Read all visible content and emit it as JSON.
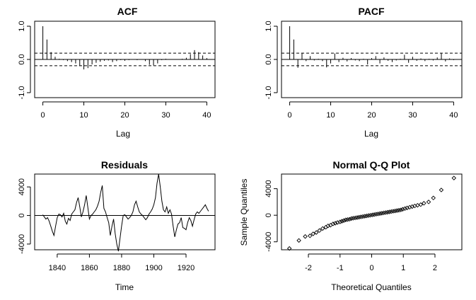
{
  "chart_data": [
    {
      "type": "bar",
      "title": "ACF",
      "xlabel": "Lag",
      "ylabel": "",
      "xlim": [
        -2,
        42
      ],
      "ylim": [
        -1.15,
        1.15
      ],
      "xticks": [
        0,
        10,
        20,
        30,
        40
      ],
      "xtick_labels": [
        "0",
        "10",
        "20",
        "30",
        "40"
      ],
      "yticks": [
        -1.0,
        0.0,
        1.0
      ],
      "ytick_labels": [
        "-1.0",
        "0.0",
        "1.0"
      ],
      "conf_limit": 0.19,
      "lags": [
        0,
        1,
        2,
        3,
        4,
        5,
        6,
        7,
        8,
        9,
        10,
        11,
        12,
        13,
        14,
        15,
        16,
        17,
        18,
        19,
        20,
        21,
        22,
        23,
        24,
        25,
        26,
        27,
        28,
        29,
        30,
        31,
        32,
        33,
        34,
        35,
        36,
        37,
        38,
        39,
        40
      ],
      "values": [
        1.0,
        0.6,
        0.22,
        0.08,
        0.02,
        -0.02,
        -0.05,
        -0.08,
        -0.12,
        -0.2,
        -0.3,
        -0.26,
        -0.15,
        -0.1,
        -0.07,
        -0.04,
        -0.03,
        -0.08,
        -0.05,
        -0.02,
        -0.04,
        -0.02,
        -0.01,
        -0.02,
        -0.01,
        -0.05,
        -0.16,
        -0.18,
        -0.12,
        -0.02,
        0.02,
        0.01,
        0.0,
        0.01,
        0.02,
        0.05,
        0.16,
        0.28,
        0.22,
        0.12,
        0.04
      ]
    },
    {
      "type": "bar",
      "title": "PACF",
      "xlabel": "Lag",
      "ylabel": "",
      "xlim": [
        -2,
        42
      ],
      "ylim": [
        -1.15,
        1.15
      ],
      "xticks": [
        0,
        10,
        20,
        30,
        40
      ],
      "xtick_labels": [
        "0",
        "10",
        "20",
        "30",
        "40"
      ],
      "yticks": [
        -1.0,
        0.0,
        1.0
      ],
      "ytick_labels": [
        "-1.0",
        "0.0",
        "1.0"
      ],
      "conf_limit": 0.19,
      "lags": [
        0,
        1,
        2,
        3,
        4,
        5,
        6,
        7,
        8,
        9,
        10,
        11,
        12,
        13,
        14,
        15,
        16,
        17,
        18,
        19,
        20,
        21,
        22,
        23,
        24,
        25,
        26,
        27,
        28,
        29,
        30,
        31,
        32,
        33,
        34,
        35,
        36,
        37,
        38,
        39,
        40
      ],
      "values": [
        1.0,
        0.6,
        -0.25,
        0.2,
        -0.05,
        0.1,
        -0.03,
        0.02,
        -0.05,
        -0.24,
        -0.12,
        0.18,
        -0.08,
        0.05,
        -0.06,
        0.04,
        -0.03,
        -0.05,
        0.02,
        -0.15,
        0.04,
        0.1,
        -0.12,
        0.06,
        -0.04,
        -0.08,
        -0.03,
        0.02,
        0.14,
        -0.1,
        0.08,
        -0.04,
        0.03,
        -0.05,
        0.02,
        -0.03,
        0.06,
        0.18,
        -0.06,
        0.03,
        -0.02
      ]
    },
    {
      "type": "line",
      "title": "Residuals",
      "xlabel": "Time",
      "ylabel": "",
      "xlim": [
        1826,
        1938
      ],
      "ylim": [
        -4800,
        5800
      ],
      "xticks": [
        1840,
        1860,
        1880,
        1900,
        1920
      ],
      "xtick_labels": [
        "1840",
        "1860",
        "1880",
        "1900",
        "1920"
      ],
      "yticks": [
        -4000,
        0,
        4000
      ],
      "ytick_labels": [
        "-4000",
        "0",
        "4000"
      ],
      "hline": 0,
      "x": [
        1831,
        1832,
        1833,
        1834,
        1835,
        1836,
        1837,
        1838,
        1839,
        1840,
        1841,
        1842,
        1843,
        1844,
        1845,
        1846,
        1847,
        1848,
        1849,
        1850,
        1851,
        1852,
        1853,
        1854,
        1855,
        1856,
        1857,
        1858,
        1859,
        1860,
        1861,
        1862,
        1863,
        1864,
        1865,
        1866,
        1867,
        1868,
        1869,
        1870,
        1871,
        1872,
        1873,
        1874,
        1875,
        1876,
        1877,
        1878,
        1879,
        1880,
        1881,
        1882,
        1883,
        1884,
        1885,
        1886,
        1887,
        1888,
        1889,
        1890,
        1891,
        1892,
        1893,
        1894,
        1895,
        1896,
        1897,
        1898,
        1899,
        1900,
        1901,
        1902,
        1903,
        1904,
        1905,
        1906,
        1907,
        1908,
        1909,
        1910,
        1911,
        1912,
        1913,
        1914,
        1915,
        1916,
        1917,
        1918,
        1919,
        1920,
        1921,
        1922,
        1923,
        1924,
        1925,
        1926,
        1927,
        1928,
        1929,
        1930,
        1931,
        1932,
        1933,
        1934
      ],
      "y": [
        100,
        -200,
        -500,
        -300,
        -800,
        -1500,
        -2200,
        -2800,
        -1500,
        -300,
        200,
        100,
        -200,
        300,
        -800,
        -1200,
        -400,
        -700,
        200,
        500,
        800,
        1800,
        2500,
        1200,
        -200,
        500,
        1500,
        2800,
        1200,
        -500,
        0,
        200,
        500,
        800,
        1300,
        2000,
        3200,
        4200,
        1000,
        500,
        -300,
        -1000,
        -2800,
        -1500,
        -500,
        -2500,
        -4000,
        -5000,
        -3200,
        -1500,
        0,
        100,
        -200,
        -500,
        -300,
        0,
        500,
        1500,
        2000,
        1200,
        500,
        200,
        0,
        -300,
        -600,
        -300,
        200,
        500,
        900,
        1500,
        2500,
        4500,
        5800,
        4000,
        2000,
        800,
        500,
        1200,
        300,
        800,
        200,
        -1500,
        -3000,
        -2000,
        -1200,
        -1000,
        -300,
        -1700,
        -1800,
        -2000,
        -1000,
        -300,
        -700,
        -1500,
        -600,
        200,
        500,
        300,
        600,
        900,
        1200,
        1500,
        1000,
        600
      ]
    },
    {
      "type": "scatter",
      "title": "Normal Q-Q Plot",
      "xlabel": "Theoretical Quantiles",
      "ylabel": "Sample Quantiles",
      "xlim": [
        -2.85,
        2.85
      ],
      "ylim": [
        -5200,
        6200
      ],
      "xticks": [
        -2,
        -1,
        0,
        1,
        2
      ],
      "xtick_labels": [
        "-2",
        "-1",
        "0",
        "1",
        "2"
      ],
      "yticks": [
        -4000,
        0,
        4000
      ],
      "ytick_labels": [
        "-4000",
        "0",
        "4000"
      ],
      "x": [
        -2.6,
        -2.3,
        -2.1,
        -1.95,
        -1.85,
        -1.75,
        -1.65,
        -1.55,
        -1.45,
        -1.38,
        -1.3,
        -1.22,
        -1.15,
        -1.08,
        -1.0,
        -0.94,
        -0.88,
        -0.82,
        -0.76,
        -0.7,
        -0.64,
        -0.58,
        -0.52,
        -0.46,
        -0.4,
        -0.34,
        -0.28,
        -0.22,
        -0.16,
        -0.1,
        -0.04,
        0.02,
        0.08,
        0.14,
        0.2,
        0.26,
        0.32,
        0.38,
        0.44,
        0.5,
        0.56,
        0.62,
        0.68,
        0.74,
        0.8,
        0.86,
        0.92,
        0.98,
        1.05,
        1.12,
        1.2,
        1.28,
        1.36,
        1.45,
        1.55,
        1.65,
        1.8,
        1.95,
        2.2,
        2.6
      ],
      "y": [
        -5000,
        -3800,
        -3200,
        -3100,
        -2800,
        -2600,
        -2300,
        -2000,
        -1800,
        -1600,
        -1500,
        -1300,
        -1200,
        -1100,
        -1000,
        -900,
        -800,
        -700,
        -650,
        -600,
        -500,
        -450,
        -400,
        -350,
        -300,
        -250,
        -200,
        -150,
        -100,
        -50,
        0,
        50,
        100,
        150,
        200,
        250,
        300,
        350,
        400,
        450,
        500,
        550,
        600,
        650,
        700,
        750,
        800,
        900,
        1000,
        1100,
        1200,
        1300,
        1400,
        1500,
        1600,
        1800,
        2000,
        2600,
        3800,
        5600
      ]
    }
  ]
}
